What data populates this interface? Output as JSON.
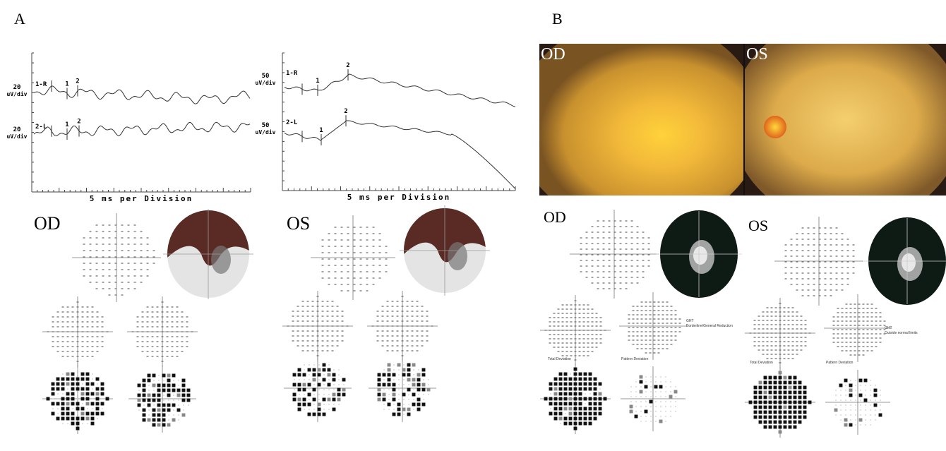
{
  "panel_a": {
    "label": "A",
    "vep": [
      {
        "channels": [
          {
            "scale": "20",
            "unit": "uV/div",
            "trace": "1-R",
            "peaks": [
              "1",
              "2"
            ]
          },
          {
            "scale": "20",
            "unit": "uV/div",
            "trace": "2-L",
            "peaks": [
              "1",
              "2"
            ]
          }
        ],
        "time_axis": "5 ms per Division"
      },
      {
        "channels": [
          {
            "scale": "50",
            "unit": "uV/div",
            "trace": "1-R",
            "peaks": [
              "1",
              "2"
            ]
          },
          {
            "scale": "50",
            "unit": "uV/div",
            "trace": "2-L",
            "peaks": [
              "1",
              "2"
            ]
          }
        ],
        "time_axis": "5 ms per Division"
      }
    ],
    "visual_fields": [
      {
        "eye": "OD"
      },
      {
        "eye": "OS"
      }
    ]
  },
  "panel_b": {
    "label": "B",
    "fundus": [
      {
        "eye": "OD"
      },
      {
        "eye": "OS"
      }
    ],
    "visual_fields": [
      {
        "eye": "OD",
        "ght": "GHT",
        "result": "Borderline/General Reduction",
        "total": "Total Deviation",
        "pattern": "Pattern Deviation"
      },
      {
        "eye": "OS",
        "ght": "GHT",
        "result": "Outside normal limits",
        "total": "Total Deviation",
        "pattern": "Pattern Deviation"
      }
    ]
  }
}
